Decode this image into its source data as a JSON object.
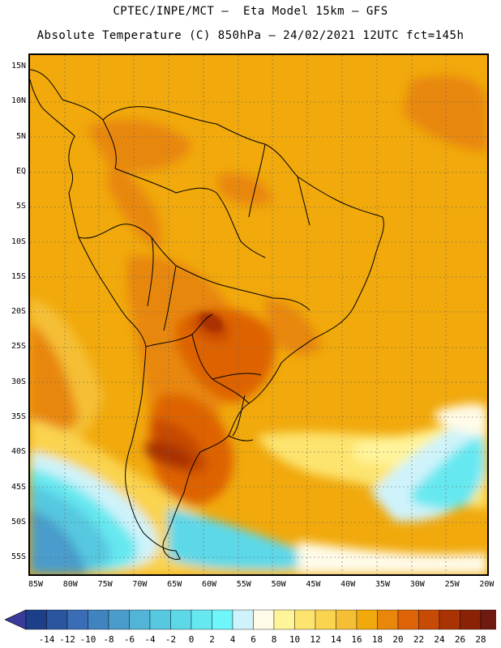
{
  "header": {
    "line1": "CPTEC/INPE/MCT –  Eta Model 15km – GFS",
    "line2": "Absolute Temperature (C) 850hPa – 24/02/2021 12UTC fct=145h"
  },
  "map": {
    "lat_labels": [
      "15N",
      "10N",
      "5N",
      "EQ",
      "5S",
      "10S",
      "15S",
      "20S",
      "25S",
      "30S",
      "35S",
      "40S",
      "45S",
      "50S",
      "55S"
    ],
    "lon_labels": [
      "85W",
      "80W",
      "75W",
      "70W",
      "65W",
      "60W",
      "55W",
      "50W",
      "45W",
      "40W",
      "35W",
      "30W",
      "25W",
      "20W"
    ]
  },
  "colorbar": {
    "labels": [
      "-14",
      "-12",
      "-10",
      "-8",
      "-6",
      "-4",
      "-2",
      "0",
      "2",
      "4",
      "6",
      "8",
      "10",
      "12",
      "14",
      "16",
      "18",
      "20",
      "22",
      "24",
      "26",
      "28"
    ],
    "colors": [
      "#1d3f8a",
      "#2a56a0",
      "#3a6db5",
      "#3f84bf",
      "#4a9ccb",
      "#52b4d6",
      "#56c8e0",
      "#5cd8e8",
      "#66e8f0",
      "#6ef6fa",
      "#cff3fa",
      "#fffbe8",
      "#fff49a",
      "#fde46e",
      "#fad34f",
      "#f5bf35",
      "#f1a90c",
      "#e8870a",
      "#de6306",
      "#c74a05",
      "#a93303",
      "#8a2207",
      "#6e1a10"
    ],
    "under_color": "#3a3a9a",
    "over_color": "#8e0b3a"
  }
}
